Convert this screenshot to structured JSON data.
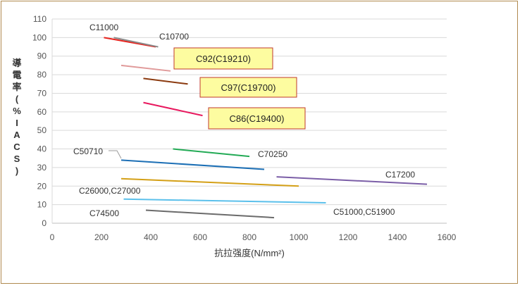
{
  "chart_data": {
    "type": "line",
    "xlabel": "抗拉强度(N/mm²)",
    "ylabel": "導電率(%IACS)",
    "xlim": [
      0,
      1600
    ],
    "ylim": [
      0,
      110
    ],
    "xticks": [
      "0",
      "200",
      "400",
      "600",
      "800",
      "1000",
      "1200",
      "1400",
      "1600"
    ],
    "yticks": [
      "0",
      "10",
      "20",
      "30",
      "40",
      "50",
      "60",
      "70",
      "80",
      "90",
      "100",
      "110"
    ],
    "grid": "horizontal",
    "series": [
      {
        "name": "C11000",
        "color": "#e8231e",
        "x": [
          210,
          420
        ],
        "y": [
          100,
          95
        ]
      },
      {
        "name": "C10700",
        "color": "#8a8a8a",
        "x": [
          250,
          430
        ],
        "y": [
          100,
          95
        ]
      },
      {
        "name": "C92(C19210)",
        "color": "#e09a9a",
        "x": [
          280,
          480
        ],
        "y": [
          85,
          82
        ]
      },
      {
        "name": "C97(C19700)",
        "color": "#8b3a0f",
        "x": [
          370,
          550
        ],
        "y": [
          78,
          75
        ]
      },
      {
        "name": "C86(C19400)",
        "color": "#e8185e",
        "x": [
          370,
          610
        ],
        "y": [
          65,
          58
        ]
      },
      {
        "name": "C70250",
        "color": "#22aa55",
        "x": [
          490,
          800
        ],
        "y": [
          40,
          36
        ]
      },
      {
        "name": "C50710",
        "color": "#1c6fb5",
        "x": [
          280,
          860
        ],
        "y": [
          34,
          29
        ]
      },
      {
        "name": "C17200",
        "color": "#7b5ea7",
        "x": [
          910,
          1520
        ],
        "y": [
          25,
          21
        ]
      },
      {
        "name": "C26000,C27000",
        "color": "#d4a017",
        "x": [
          280,
          1000
        ],
        "y": [
          24,
          20
        ]
      },
      {
        "name": "C51000,C51900",
        "color": "#5bc0eb",
        "x": [
          290,
          1110
        ],
        "y": [
          13,
          11
        ]
      },
      {
        "name": "C74500",
        "color": "#6b6b6b",
        "x": [
          380,
          900
        ],
        "y": [
          7,
          3
        ]
      }
    ]
  }
}
